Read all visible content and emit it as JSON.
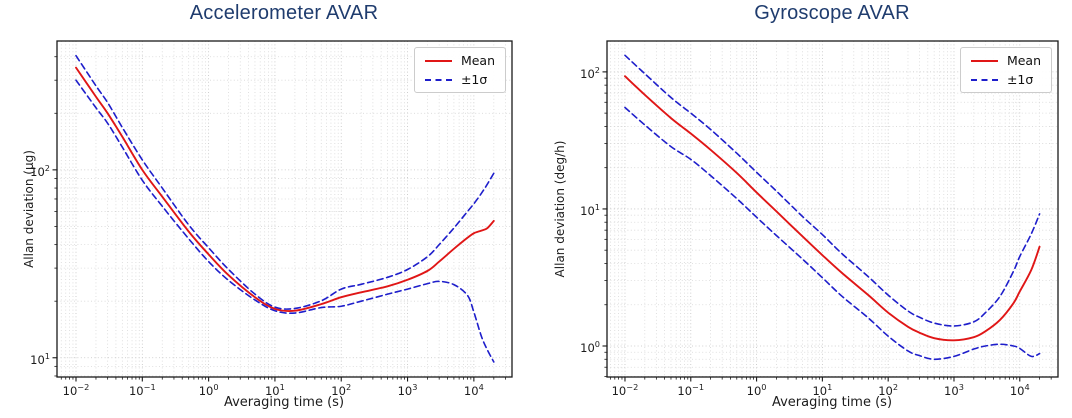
{
  "colors": {
    "mean_line": "#e01616",
    "sigma_line": "#1e1ecb",
    "title_text": "#1f3c6e",
    "axis_text": "#1c1c1c",
    "spine": "#1a1a1a",
    "grid_major": "#c3c3c3",
    "grid_minor": "#d8d8d8",
    "legend_border": "#cccccc"
  },
  "chart_data": [
    {
      "type": "line",
      "title": "Accelerometer AVAR",
      "xlabel": "Averaging time (s)",
      "ylabel": "Allan deviation (μg)",
      "x_scale": "log",
      "y_scale": "log",
      "grid": true,
      "legend_position": "upper right",
      "legend": [
        "Mean",
        "±1σ"
      ],
      "xlim": [
        0.00517,
        37600
      ],
      "ylim": [
        7.9,
        485
      ],
      "x_tick_exponents": [
        -2,
        -1,
        0,
        1,
        2,
        3,
        4
      ],
      "y_tick_exponents": [
        1,
        2
      ],
      "tau": [
        0.01,
        0.02,
        0.03,
        0.05,
        0.1,
        0.2,
        0.5,
        1,
        2,
        5,
        10,
        20,
        50,
        100,
        200,
        500,
        1000,
        2000,
        3000,
        5000,
        8000,
        10000,
        13000,
        16000,
        20000
      ],
      "series": [
        {
          "name": "Mean",
          "style": "solid",
          "color": "#e01616",
          "values": [
            350,
            245,
            200,
            150,
            100,
            72,
            47,
            35.5,
            27.5,
            21,
            18.2,
            17.8,
            19.3,
            21,
            22.3,
            24,
            26,
            29,
            32.5,
            38,
            43.5,
            46,
            47.5,
            49,
            53.5
          ]
        },
        {
          "name": "+1sigma",
          "style": "dashed",
          "color": "#1e1ecb",
          "values": [
            405,
            280,
            228,
            168,
            113,
            80,
            51,
            38.5,
            29.5,
            21.8,
            18.6,
            18.3,
            20.1,
            23.2,
            24.6,
            26.8,
            29.5,
            34.5,
            40,
            49,
            60,
            66,
            75,
            84,
            96
          ]
        },
        {
          "name": "-1sigma",
          "style": "dashed",
          "color": "#1e1ecb",
          "values": [
            300,
            214,
            177,
            132,
            88,
            64,
            43,
            32.5,
            25.8,
            20.3,
            17.8,
            17.3,
            18.5,
            18.8,
            20,
            21.8,
            23.2,
            24.8,
            25.5,
            24.5,
            21.5,
            17.5,
            13,
            11,
            9.5
          ]
        }
      ]
    },
    {
      "type": "line",
      "title": "Gyroscope AVAR",
      "xlabel": "Averaging time (s)",
      "ylabel": "Allan deviation (deg/h)",
      "x_scale": "log",
      "y_scale": "log",
      "grid": true,
      "legend_position": "upper right",
      "legend": [
        "Mean",
        "±1σ"
      ],
      "xlim": [
        0.00533,
        38100
      ],
      "ylim": [
        0.594,
        168
      ],
      "x_tick_exponents": [
        -2,
        -1,
        0,
        1,
        2,
        3,
        4
      ],
      "y_tick_exponents": [
        0,
        1,
        2
      ],
      "tau": [
        0.01,
        0.02,
        0.05,
        0.1,
        0.2,
        0.5,
        1,
        2,
        5,
        10,
        20,
        50,
        100,
        200,
        300,
        500,
        1000,
        2000,
        3000,
        5000,
        8000,
        10000,
        15000,
        20000
      ],
      "series": [
        {
          "name": "Mean",
          "style": "solid",
          "color": "#e01616",
          "values": [
            93,
            68,
            46,
            35.5,
            27,
            18.3,
            13.2,
            9.6,
            6.3,
            4.6,
            3.4,
            2.35,
            1.75,
            1.38,
            1.25,
            1.14,
            1.1,
            1.16,
            1.28,
            1.55,
            2.05,
            2.5,
            3.6,
            5.3
          ]
        },
        {
          "name": "+1sigma",
          "style": "dashed",
          "color": "#1e1ecb",
          "values": [
            132,
            97,
            65,
            50,
            38,
            25.5,
            18.5,
            13.5,
            8.8,
            6.5,
            4.7,
            3.2,
            2.35,
            1.8,
            1.62,
            1.47,
            1.4,
            1.5,
            1.75,
            2.3,
            3.5,
            4.5,
            6.6,
            9.2
          ]
        },
        {
          "name": "-1sigma",
          "style": "dashed",
          "color": "#1e1ecb",
          "values": [
            55,
            41,
            28.5,
            23,
            17.5,
            11.9,
            8.7,
            6.4,
            4.3,
            3.15,
            2.3,
            1.6,
            1.18,
            0.92,
            0.85,
            0.8,
            0.84,
            0.95,
            1.0,
            1.03,
            1.0,
            0.96,
            0.84,
            0.88
          ]
        }
      ]
    }
  ]
}
